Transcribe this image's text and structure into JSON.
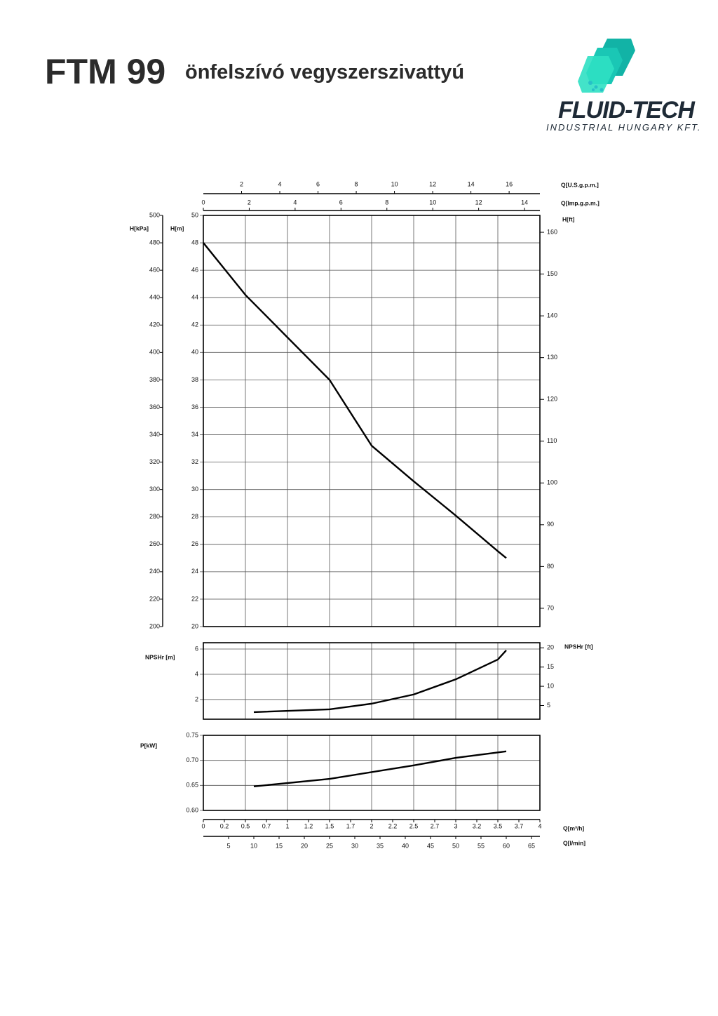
{
  "header": {
    "title": "FTM 99",
    "subtitle": "önfelszívó vegyszerszivattyú",
    "logo_name": "FLUID-TECH",
    "logo_tagline": "INDUSTRIAL HUNGARY KFT."
  },
  "chart_data": [
    {
      "type": "line",
      "color": "#000000",
      "xlim": [
        0,
        4
      ],
      "xticks": [
        0,
        0.5,
        1,
        1.5,
        2,
        2.5,
        3,
        3.5,
        4
      ],
      "x": [
        0,
        0.5,
        1,
        1.5,
        2,
        2.5,
        3,
        3.5,
        3.6
      ],
      "values": [
        48,
        44.2,
        41.1,
        38.0,
        33.2,
        30.6,
        28.1,
        25.5,
        25
      ],
      "ylabel": "H[m]",
      "ylim": [
        20,
        50
      ],
      "yticks": [
        20,
        22,
        24,
        26,
        28,
        30,
        32,
        34,
        36,
        38,
        40,
        42,
        44,
        46,
        48,
        50
      ],
      "y_left2": {
        "label": "H[kPa]",
        "lim": [
          200,
          500
        ],
        "ticks": [
          200,
          220,
          240,
          260,
          280,
          300,
          320,
          340,
          360,
          380,
          400,
          420,
          440,
          460,
          480,
          500
        ]
      },
      "y2label": "H[ft]",
      "y2lim": [
        65.62,
        164.04
      ],
      "y2ticks": [
        70,
        80,
        90,
        100,
        110,
        120,
        130,
        140,
        150,
        160
      ],
      "x_top_axes": [
        {
          "label": "Q[U.S.g.p.m.]",
          "lim": [
            0,
            17.61
          ],
          "ticks": [
            2,
            4,
            6,
            8,
            10,
            12,
            14,
            16
          ]
        },
        {
          "label": "Q[Imp.g.p.m.]",
          "lim": [
            0,
            14.67
          ],
          "ticks": [
            0,
            2,
            4,
            6,
            8,
            10,
            12,
            14
          ]
        }
      ]
    },
    {
      "type": "line",
      "color": "#000000",
      "xlim": [
        0,
        4
      ],
      "xticks": [
        0,
        0.5,
        1,
        1.5,
        2,
        2.5,
        3,
        3.5,
        4
      ],
      "x": [
        0.6,
        1.5,
        2,
        2.5,
        3,
        3.5,
        3.6
      ],
      "values": [
        1.0,
        1.22,
        1.67,
        2.4,
        3.6,
        5.17,
        5.9
      ],
      "ylabel": "NPSHr  [m]",
      "ylim": [
        0.44,
        6.5
      ],
      "yticks": [
        2,
        4,
        6
      ],
      "y2label": "NPSHr [ft]",
      "y2lim": [
        1.44,
        21.33
      ],
      "y2ticks": [
        5,
        10,
        15,
        20
      ]
    },
    {
      "type": "line",
      "color": "#000000",
      "xlim": [
        0,
        4
      ],
      "xticks": [
        0,
        {
          "value": 0.25,
          "label": "0.2"
        },
        0.5,
        {
          "value": 0.75,
          "label": "0.7"
        },
        1,
        {
          "value": 1.25,
          "label": "1.2"
        },
        1.5,
        {
          "value": 1.75,
          "label": "1.7"
        },
        2,
        {
          "value": 2.25,
          "label": "2.2"
        },
        2.5,
        {
          "value": 2.75,
          "label": "2.7"
        },
        3,
        {
          "value": 3.25,
          "label": "3.2"
        },
        3.5,
        {
          "value": 3.75,
          "label": "3.7"
        },
        4
      ],
      "xlabel": "Q[m³/h]",
      "x2label": "Q[l/min]",
      "x2lim": [
        0,
        66.67
      ],
      "x2ticks": [
        5,
        10,
        15,
        20,
        25,
        30,
        35,
        40,
        45,
        50,
        55,
        60,
        65
      ],
      "x": [
        0.6,
        1.5,
        2.5,
        3,
        3.6
      ],
      "values": [
        0.648,
        0.663,
        0.69,
        0.705,
        0.718
      ],
      "ylabel": "P[kW]",
      "ylim": [
        0.6,
        0.75
      ],
      "yticks": [
        {
          "value": 0.6,
          "label": "0.60"
        },
        0.65,
        {
          "value": 0.7,
          "label": "0.70"
        },
        0.75
      ]
    }
  ]
}
